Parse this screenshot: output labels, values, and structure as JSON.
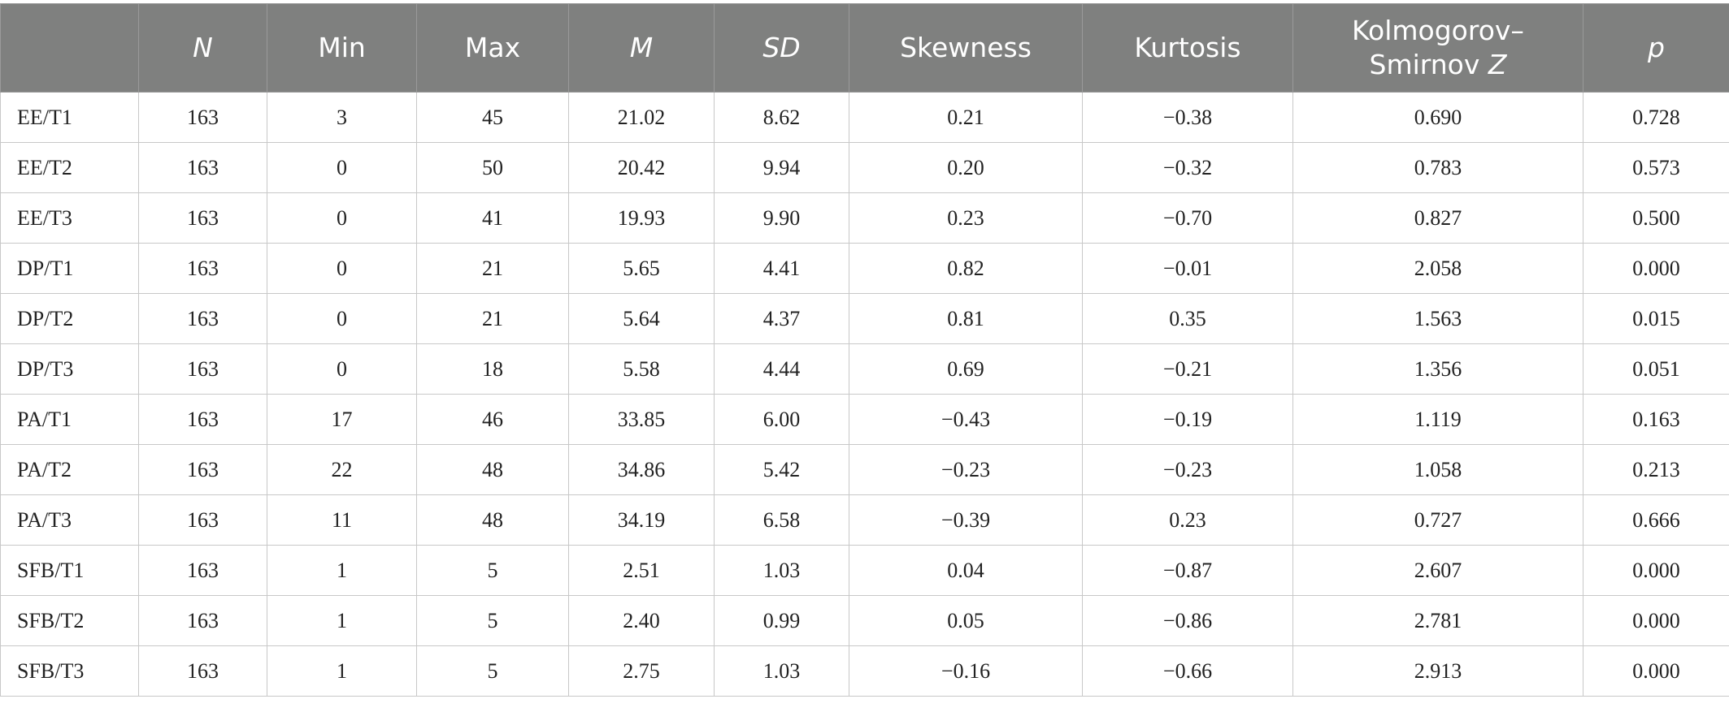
{
  "table": {
    "headers": [
      {
        "key": "label",
        "text": "",
        "italic": false
      },
      {
        "key": "n",
        "text": "N",
        "italic": true
      },
      {
        "key": "min",
        "text": "Min",
        "italic": false
      },
      {
        "key": "max",
        "text": "Max",
        "italic": false
      },
      {
        "key": "m",
        "text": "M",
        "italic": true
      },
      {
        "key": "sd",
        "text": "SD",
        "italic": true
      },
      {
        "key": "skewness",
        "text": "Skewness",
        "italic": false
      },
      {
        "key": "kurtosis",
        "text": "Kurtosis",
        "italic": false
      },
      {
        "key": "ks_line1",
        "text": "Kolmogorov–",
        "italic": false
      },
      {
        "key": "ks_line2",
        "text": "Smirnov",
        "italic": false
      },
      {
        "key": "ks_z",
        "text": "Z",
        "italic": true
      },
      {
        "key": "p",
        "text": "p",
        "italic": true
      }
    ],
    "rows": [
      [
        "EE/T1",
        "163",
        "3",
        "45",
        "21.02",
        "8.62",
        "0.21",
        "−0.38",
        "0.690",
        "0.728"
      ],
      [
        "EE/T2",
        "163",
        "0",
        "50",
        "20.42",
        "9.94",
        "0.20",
        "−0.32",
        "0.783",
        "0.573"
      ],
      [
        "EE/T3",
        "163",
        "0",
        "41",
        "19.93",
        "9.90",
        "0.23",
        "−0.70",
        "0.827",
        "0.500"
      ],
      [
        "DP/T1",
        "163",
        "0",
        "21",
        "5.65",
        "4.41",
        "0.82",
        "−0.01",
        "2.058",
        "0.000"
      ],
      [
        "DP/T2",
        "163",
        "0",
        "21",
        "5.64",
        "4.37",
        "0.81",
        "0.35",
        "1.563",
        "0.015"
      ],
      [
        "DP/T3",
        "163",
        "0",
        "18",
        "5.58",
        "4.44",
        "0.69",
        "−0.21",
        "1.356",
        "0.051"
      ],
      [
        "PA/T1",
        "163",
        "17",
        "46",
        "33.85",
        "6.00",
        "−0.43",
        "−0.19",
        "1.119",
        "0.163"
      ],
      [
        "PA/T2",
        "163",
        "22",
        "48",
        "34.86",
        "5.42",
        "−0.23",
        "−0.23",
        "1.058",
        "0.213"
      ],
      [
        "PA/T3",
        "163",
        "11",
        "48",
        "34.19",
        "6.58",
        "−0.39",
        "0.23",
        "0.727",
        "0.666"
      ],
      [
        "SFB/T1",
        "163",
        "1",
        "5",
        "2.51",
        "1.03",
        "0.04",
        "−0.87",
        "2.607",
        "0.000"
      ],
      [
        "SFB/T2",
        "163",
        "1",
        "5",
        "2.40",
        "0.99",
        "0.05",
        "−0.86",
        "2.781",
        "0.000"
      ],
      [
        "SFB/T3",
        "163",
        "1",
        "5",
        "2.75",
        "1.03",
        "−0.16",
        "−0.66",
        "2.913",
        "0.000"
      ]
    ]
  }
}
